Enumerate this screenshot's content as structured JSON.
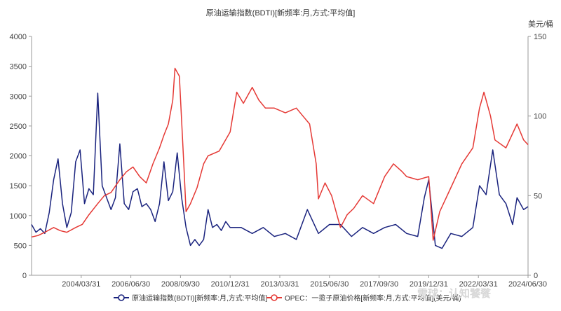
{
  "chart_data": {
    "type": "line",
    "title": "原油运输指数(BDTI)[新频率:月,方式:平均值]",
    "y2_unit_label": "美元/桶",
    "x_tick_labels": [
      "2004/03/31",
      "2006/06/30",
      "2008/09/30",
      "2010/12/31",
      "2013/03/31",
      "2015/06/30",
      "2017/09/30",
      "2019/12/31",
      "2022/03/31",
      "2024/06/30"
    ],
    "x_tick_dates": [
      2004.25,
      2006.5,
      2008.75,
      2011.0,
      2013.25,
      2015.5,
      2017.75,
      2020.0,
      2022.25,
      2024.5
    ],
    "xlim": [
      2002.0,
      2024.5
    ],
    "ylim_left": [
      0,
      4000
    ],
    "left_ticks": [
      0,
      500,
      1000,
      1500,
      2000,
      2500,
      3000,
      3500,
      4000
    ],
    "ylim_right": [
      0,
      150
    ],
    "right_ticks": [
      0,
      50,
      100,
      150
    ],
    "grid": false,
    "legend_position": "bottom",
    "series": [
      {
        "name": "原油运输指数(BDTI)[新频率:月,方式:平均值]",
        "axis": "left",
        "color": "#1a237e",
        "x": [
          2002.0,
          2002.2,
          2002.4,
          2002.6,
          2002.8,
          2003.0,
          2003.2,
          2003.4,
          2003.6,
          2003.8,
          2004.0,
          2004.2,
          2004.4,
          2004.6,
          2004.8,
          2005.0,
          2005.2,
          2005.4,
          2005.6,
          2005.8,
          2006.0,
          2006.2,
          2006.4,
          2006.6,
          2006.8,
          2007.0,
          2007.2,
          2007.4,
          2007.6,
          2007.8,
          2008.0,
          2008.2,
          2008.4,
          2008.6,
          2008.8,
          2009.0,
          2009.2,
          2009.4,
          2009.6,
          2009.8,
          2010.0,
          2010.2,
          2010.4,
          2010.6,
          2010.8,
          2011.0,
          2011.5,
          2012.0,
          2012.5,
          2013.0,
          2013.5,
          2014.0,
          2014.5,
          2015.0,
          2015.5,
          2016.0,
          2016.5,
          2017.0,
          2017.5,
          2018.0,
          2018.5,
          2019.0,
          2019.5,
          2019.8,
          2020.0,
          2020.3,
          2020.6,
          2021.0,
          2021.5,
          2022.0,
          2022.3,
          2022.6,
          2022.9,
          2023.2,
          2023.5,
          2023.8,
          2024.0,
          2024.3,
          2024.5
        ],
        "y": [
          850,
          720,
          780,
          700,
          1050,
          1600,
          1950,
          1200,
          800,
          1050,
          1900,
          2100,
          1200,
          1450,
          1350,
          3050,
          1500,
          1300,
          1100,
          1300,
          2200,
          1200,
          1100,
          1400,
          1450,
          1150,
          1200,
          1100,
          900,
          1200,
          1900,
          1250,
          1400,
          2050,
          1300,
          800,
          500,
          600,
          500,
          600,
          1100,
          800,
          850,
          750,
          900,
          800,
          800,
          700,
          800,
          650,
          700,
          600,
          1100,
          700,
          850,
          850,
          650,
          800,
          700,
          800,
          850,
          700,
          650,
          1300,
          1600,
          500,
          450,
          700,
          650,
          800,
          1500,
          1350,
          2100,
          1350,
          1200,
          850,
          1300,
          1100,
          1150
        ]
      },
      {
        "name": "OPEC：一揽子原油价格[新频率:月,方式:平均值](美元/桶)",
        "axis": "right",
        "color": "#e53935",
        "x": [
          2002.0,
          2002.3,
          2002.6,
          2003.0,
          2003.3,
          2003.6,
          2004.0,
          2004.3,
          2004.6,
          2005.0,
          2005.3,
          2005.6,
          2006.0,
          2006.3,
          2006.6,
          2006.9,
          2007.2,
          2007.5,
          2007.8,
          2008.0,
          2008.2,
          2008.4,
          2008.5,
          2008.7,
          2008.9,
          2009.0,
          2009.2,
          2009.5,
          2009.8,
          2010.0,
          2010.5,
          2011.0,
          2011.3,
          2011.6,
          2012.0,
          2012.3,
          2012.6,
          2013.0,
          2013.5,
          2014.0,
          2014.3,
          2014.6,
          2014.9,
          2015.0,
          2015.3,
          2015.6,
          2016.0,
          2016.3,
          2016.6,
          2017.0,
          2017.5,
          2018.0,
          2018.4,
          2018.8,
          2019.0,
          2019.5,
          2020.0,
          2020.2,
          2020.5,
          2021.0,
          2021.5,
          2022.0,
          2022.3,
          2022.5,
          2022.8,
          2023.0,
          2023.5,
          2024.0,
          2024.3,
          2024.5
        ],
        "y": [
          24,
          25,
          27,
          30,
          28,
          27,
          30,
          32,
          38,
          45,
          50,
          52,
          60,
          65,
          68,
          62,
          58,
          70,
          80,
          88,
          95,
          110,
          130,
          125,
          70,
          40,
          45,
          55,
          70,
          75,
          78,
          90,
          115,
          108,
          118,
          110,
          105,
          105,
          102,
          105,
          100,
          95,
          70,
          48,
          58,
          50,
          30,
          38,
          42,
          50,
          45,
          62,
          70,
          65,
          62,
          60,
          62,
          22,
          40,
          55,
          70,
          80,
          105,
          115,
          100,
          85,
          80,
          95,
          85,
          82
        ]
      }
    ]
  },
  "watermark": "雪球：认知饕餮"
}
